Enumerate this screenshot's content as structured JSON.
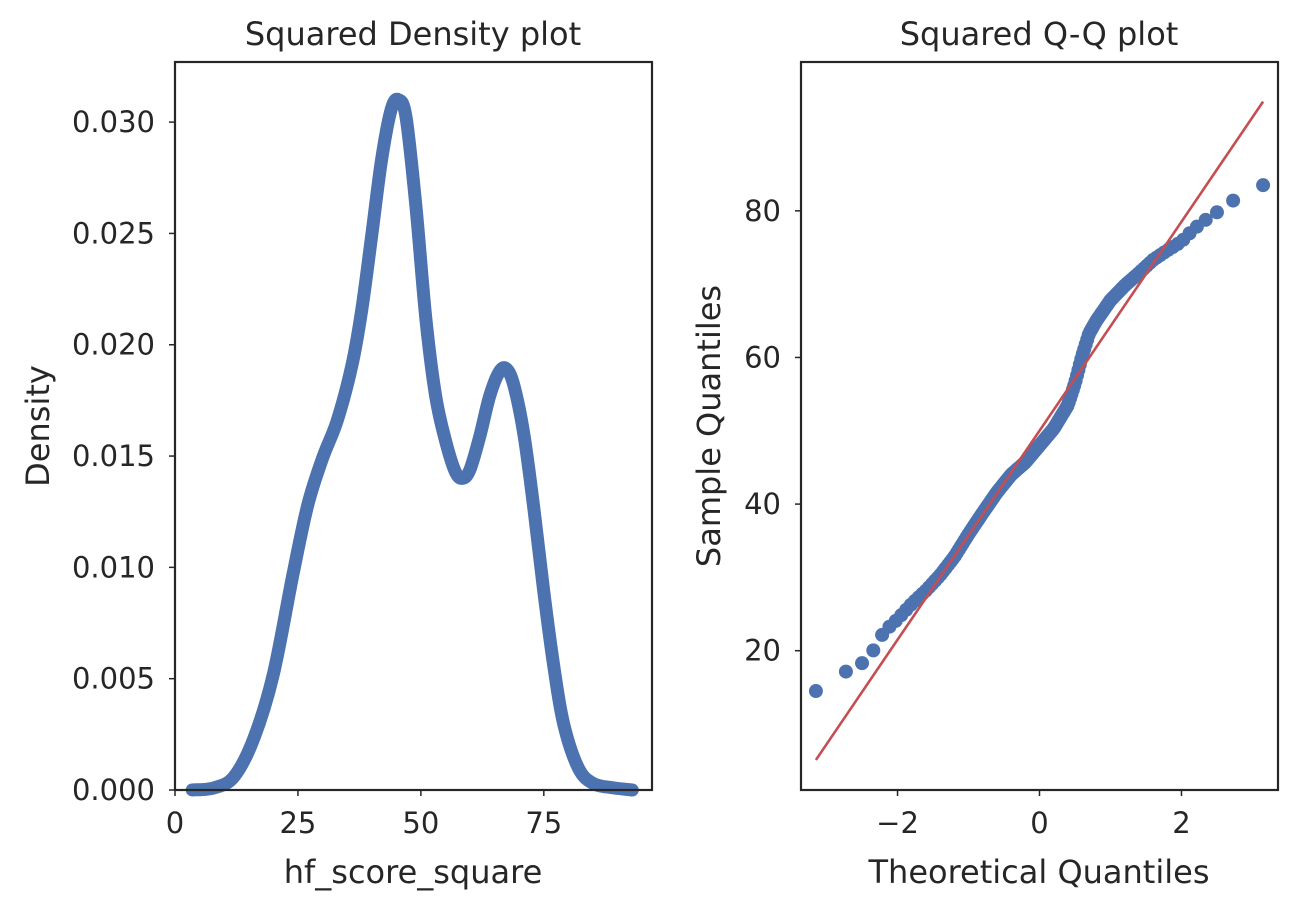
{
  "colors": {
    "density_line": "#4c72b0",
    "qq_points": "#4c72b0",
    "reference_line": "#c44e52",
    "axes": "#262626"
  },
  "chart_data": [
    {
      "type": "line",
      "title": "Squared Density plot",
      "xlabel": "hf_score_square",
      "ylabel": "Density",
      "xlim": [
        0,
        97
      ],
      "ylim": [
        0,
        0.0327
      ],
      "xticks": [
        0,
        25,
        50,
        75
      ],
      "xtick_labels": [
        "0",
        "25",
        "50",
        "75"
      ],
      "yticks": [
        0.0,
        0.005,
        0.01,
        0.015,
        0.02,
        0.025,
        0.03
      ],
      "ytick_labels": [
        "0.000",
        "0.005",
        "0.010",
        "0.015",
        "0.020",
        "0.025",
        "0.030"
      ],
      "grid": false,
      "series": [
        {
          "x": [
            3.5,
            8,
            12,
            16,
            20,
            24,
            27,
            30,
            33,
            36,
            38,
            40,
            42,
            44,
            45.5,
            47,
            49,
            51,
            53,
            55,
            57,
            58.5,
            60,
            62,
            64,
            66,
            67.5,
            69,
            71,
            73,
            75,
            77,
            79,
            82,
            85,
            89,
            93
          ],
          "y": [
            0.0,
            0.0001,
            0.0006,
            0.0023,
            0.0052,
            0.0097,
            0.0128,
            0.0149,
            0.0166,
            0.0191,
            0.0216,
            0.0249,
            0.0283,
            0.0306,
            0.031,
            0.0302,
            0.0262,
            0.0212,
            0.0177,
            0.0157,
            0.0143,
            0.014,
            0.0144,
            0.0159,
            0.0177,
            0.0188,
            0.0189,
            0.0181,
            0.0159,
            0.0126,
            0.0089,
            0.0056,
            0.003,
            0.001,
            0.0003,
            0.0001,
            0.0
          ]
        }
      ]
    },
    {
      "type": "scatter",
      "title": "Squared Q-Q plot",
      "xlabel": "Theoretical Quantiles",
      "ylabel": "Sample Quantiles",
      "xlim": [
        -3.36,
        3.36
      ],
      "ylim": [
        1.0,
        100.3
      ],
      "xticks": [
        -2,
        0,
        2
      ],
      "xtick_labels": [
        "−2",
        "0",
        "2"
      ],
      "yticks": [
        20,
        40,
        60,
        80
      ],
      "ytick_labels": [
        "20",
        "40",
        "60",
        "80"
      ],
      "grid": false,
      "reference_line": {
        "x": [
          -3.15,
          3.15
        ],
        "y": [
          5.1,
          94.9
        ]
      },
      "sample_curve": {
        "x": [
          -3.15,
          -3.0,
          -2.9,
          -2.7,
          -2.5,
          -2.3,
          -2.2,
          -2.0,
          -1.8,
          -1.6,
          -1.4,
          -1.2,
          -1.0,
          -0.8,
          -0.6,
          -0.4,
          -0.2,
          0.0,
          0.2,
          0.4,
          0.5,
          0.6,
          0.7,
          0.8,
          1.0,
          1.2,
          1.4,
          1.6,
          1.8,
          2.0,
          2.15,
          2.3,
          2.5,
          2.7,
          2.9,
          3.05,
          3.15
        ],
        "y": [
          14.5,
          15.5,
          16.2,
          17.3,
          18.3,
          20.5,
          22.5,
          24.3,
          26.4,
          28.2,
          30.3,
          32.8,
          35.9,
          38.8,
          41.6,
          44.0,
          45.7,
          48.0,
          50.3,
          53.5,
          56.5,
          60.2,
          63.3,
          65.0,
          67.8,
          69.8,
          71.5,
          73.3,
          74.6,
          75.8,
          77.3,
          78.5,
          79.8,
          81.3,
          82.0,
          82.5,
          83.5
        ]
      }
    }
  ]
}
